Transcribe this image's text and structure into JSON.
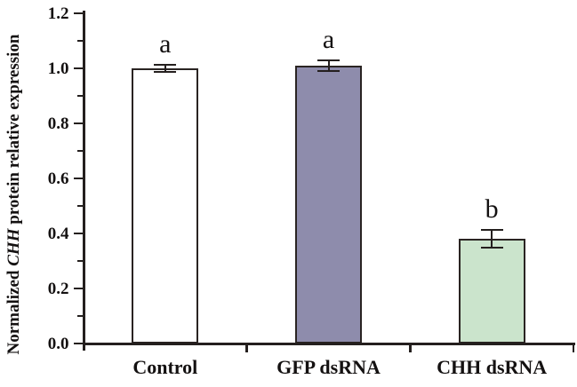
{
  "figure": {
    "background": "#ffffff",
    "axis_color": "#241f1e",
    "text_color": "#141111"
  },
  "chart_data": {
    "type": "bar",
    "title": "",
    "categories": [
      "Control",
      "GFP dsRNA",
      "CHH dsRNA"
    ],
    "values": [
      1.0,
      1.01,
      0.38
    ],
    "errors": [
      0.012,
      0.02,
      0.033
    ],
    "sig_letters": [
      "a",
      "a",
      "b"
    ],
    "bar_colors": [
      "#ffffff",
      "#8e8cac",
      "#cbe4cc"
    ],
    "bar_border_color": "#2a2422",
    "ylabel_plain": "Normalized CHH protein relative expression",
    "ylabel_parts": [
      {
        "text": "Normalized ",
        "italic": false
      },
      {
        "text": "CHH",
        "italic": true
      },
      {
        "text": " protein relative expression",
        "italic": false
      }
    ],
    "xlabel": "",
    "ylim": [
      0.0,
      1.2
    ],
    "ytick_step": 0.2,
    "ytick_minor_step": 0.1,
    "ytick_labels": [
      "0.0",
      "0.2",
      "0.4",
      "0.6",
      "0.8",
      "1.0",
      "1.2"
    ],
    "grid": false,
    "legend": null,
    "axis_style": "left-bottom-only, ticks outward, minor ticks on y, category boundary ticks on x"
  }
}
